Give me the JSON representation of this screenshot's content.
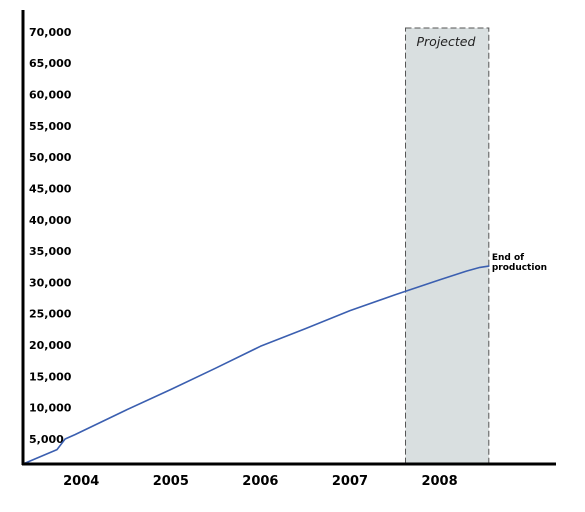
{
  "chart_data": {
    "type": "line",
    "title": "",
    "xlabel": "",
    "ylabel": "",
    "xlim": [
      2003.35,
      2009.3
    ],
    "ylim": [
      1000,
      73500
    ],
    "xticks": [
      {
        "value": 2004,
        "label": "2004"
      },
      {
        "value": 2005,
        "label": "2005"
      },
      {
        "value": 2006,
        "label": "2006"
      },
      {
        "value": 2007,
        "label": "2007"
      },
      {
        "value": 2008,
        "label": "2008"
      }
    ],
    "yticks": [
      {
        "value": 5000,
        "label": "5,000"
      },
      {
        "value": 10000,
        "label": "10,000"
      },
      {
        "value": 15000,
        "label": "15,000"
      },
      {
        "value": 20000,
        "label": "20,000"
      },
      {
        "value": 25000,
        "label": "25,000"
      },
      {
        "value": 30000,
        "label": "30,000"
      },
      {
        "value": 35000,
        "label": "35,000"
      },
      {
        "value": 40000,
        "label": "40,000"
      },
      {
        "value": 45000,
        "label": "45,000"
      },
      {
        "value": 50000,
        "label": "50,000"
      },
      {
        "value": 55000,
        "label": "55,000"
      },
      {
        "value": 60000,
        "label": "60,000"
      },
      {
        "value": 65000,
        "label": "65,000"
      },
      {
        "value": 70000,
        "label": "70,000"
      }
    ],
    "grid": false,
    "series": [
      {
        "color": "#3b5fb0",
        "x": [
          2003.35,
          2003.73,
          2003.82,
          2003.93,
          2004.5,
          2005.0,
          2005.5,
          2006.0,
          2006.5,
          2007.0,
          2007.5,
          2008.0,
          2008.3,
          2008.45,
          2008.55
        ],
        "y": [
          1000,
          3300,
          5000,
          5700,
          9600,
          12900,
          16300,
          19800,
          22600,
          25500,
          28000,
          30400,
          31800,
          32400,
          32600
        ]
      }
    ],
    "projected_region": {
      "x_start": 2007.62,
      "x_end": 2008.55,
      "label": "Projected",
      "fill": "#d9dfe0"
    },
    "annotations": [
      {
        "text_lines": [
          "End of",
          "production"
        ],
        "x": 2008.55,
        "y": 32600
      }
    ]
  }
}
